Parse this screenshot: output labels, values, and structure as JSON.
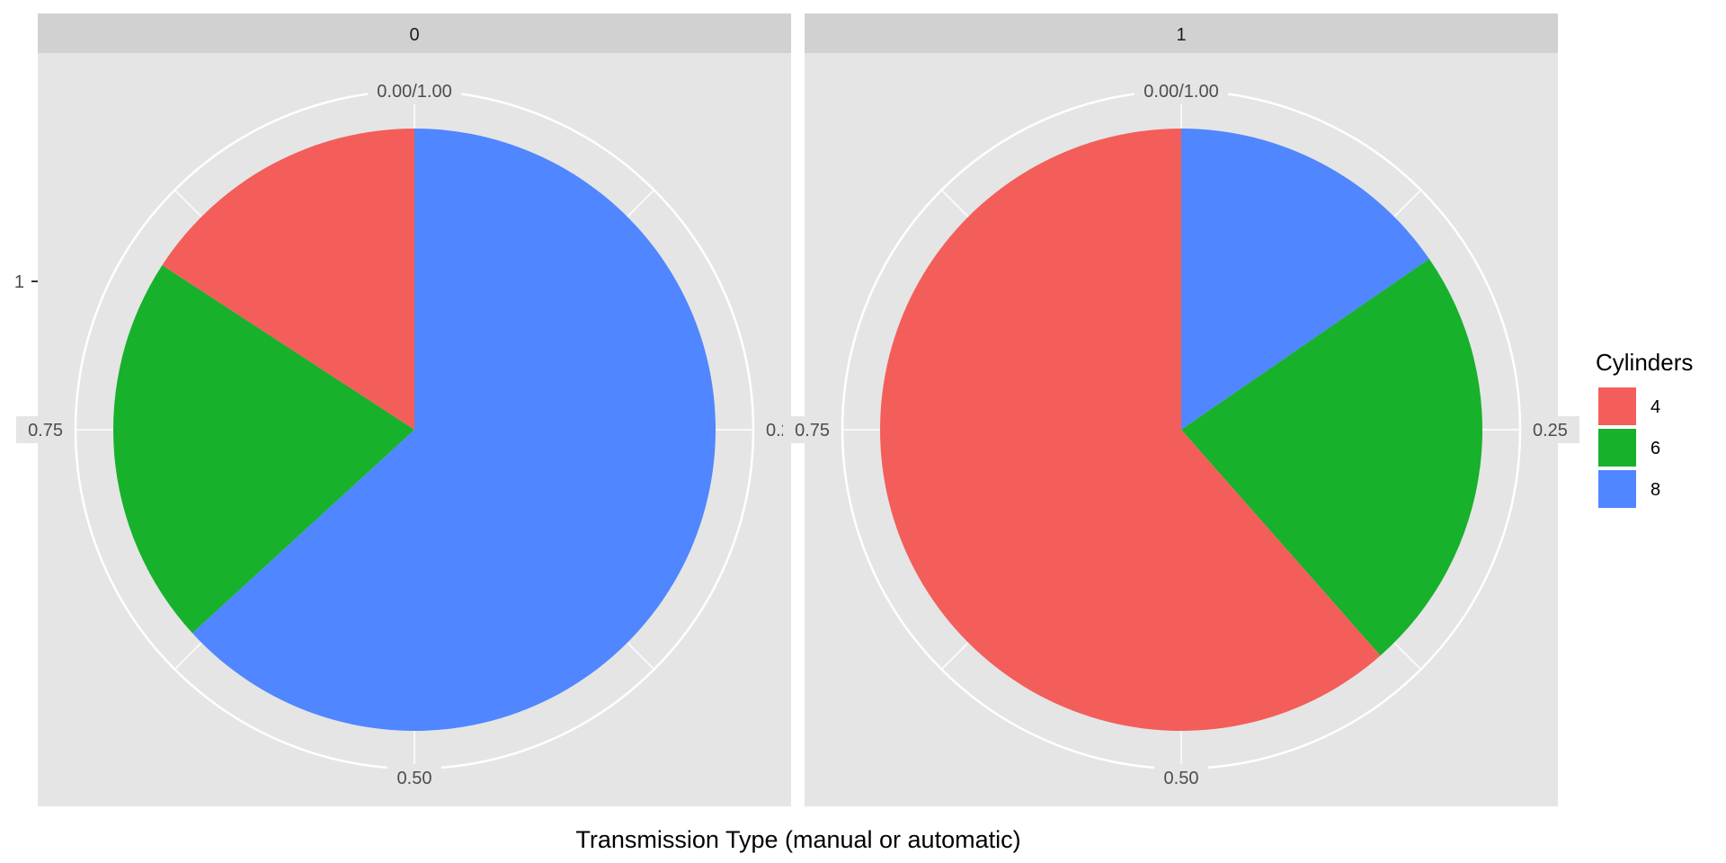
{
  "chart_data": {
    "type": "pie",
    "xlabel": "Transmission Type (manual or automatic)",
    "ylabel": "",
    "y_tick_label": "1",
    "theta_ticks": [
      "0.00/1.00",
      "0.25",
      "0.50",
      "0.75"
    ],
    "legend": {
      "title": "Cylinders",
      "position": "right",
      "entries": [
        {
          "label": "4",
          "color": "#F35E5A"
        },
        {
          "label": "6",
          "color": "#17B12B"
        },
        {
          "label": "8",
          "color": "#5086FF"
        }
      ]
    },
    "panels": [
      {
        "label": "0",
        "slices": [
          {
            "category": "8",
            "value": 0.632
          },
          {
            "category": "6",
            "value": 0.21
          },
          {
            "category": "4",
            "value": 0.158
          }
        ]
      },
      {
        "label": "1",
        "slices": [
          {
            "category": "8",
            "value": 0.154
          },
          {
            "category": "6",
            "value": 0.231
          },
          {
            "category": "4",
            "value": 0.615
          }
        ]
      }
    ],
    "colors": {
      "4": "#F35E5A",
      "6": "#17B12B",
      "8": "#5086FF"
    },
    "panel_background": "#E5E5E5",
    "strip_background": "#D1D1D1",
    "grid": true
  }
}
